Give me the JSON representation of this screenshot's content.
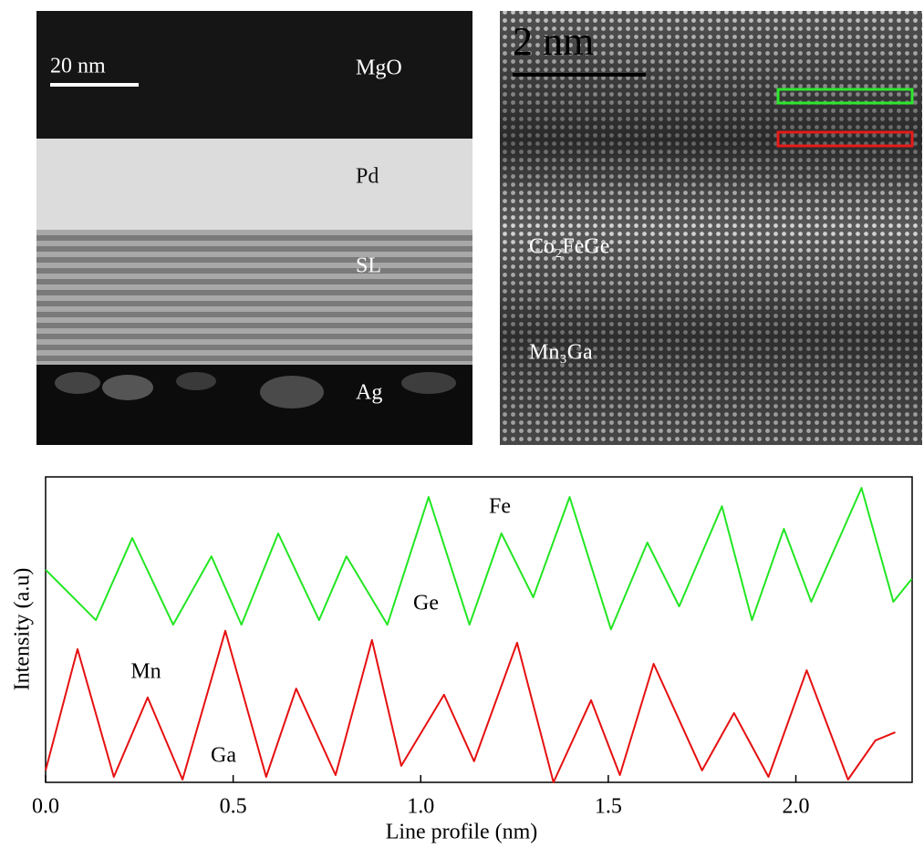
{
  "panels": [
    {
      "scale_bar": "20 nm",
      "layers": [
        "MgO",
        "Pd",
        "SL",
        "Ag"
      ]
    },
    {
      "scale_bar": "2 nm",
      "labels": [
        "Co₂FeGe",
        "Mn₃Ga"
      ]
    }
  ],
  "chart_data": {
    "type": "line",
    "xlabel": "Line profile (nm)",
    "ylabel": "Intensity (a.u)",
    "xlim": [
      0,
      2.31
    ],
    "ylim": [
      0,
      100
    ],
    "xticks": [
      {
        "value": 0,
        "label": "0.0"
      },
      0.5,
      {
        "value": 1,
        "label": "1.0"
      },
      1.5,
      {
        "value": 2,
        "label": "2.0"
      }
    ],
    "annotations": [
      "Fe",
      "Ge",
      "Mn",
      "Ga"
    ],
    "series": [
      {
        "color": "#22e622",
        "x": [
          0.0,
          0.134,
          0.231,
          0.34,
          0.442,
          0.522,
          0.62,
          0.729,
          0.802,
          0.911,
          1.021,
          1.13,
          1.215,
          1.3,
          1.397,
          1.507,
          1.604,
          1.689,
          1.803,
          1.883,
          1.968,
          2.041,
          2.175,
          2.26,
          2.309
        ],
        "values": [
          69.6,
          53.1,
          80.0,
          51.6,
          74.0,
          51.6,
          81.5,
          53.1,
          74.0,
          51.6,
          93.4,
          51.6,
          81.5,
          60.6,
          93.4,
          50.1,
          78.5,
          57.6,
          90.4,
          53.1,
          83.0,
          59.1,
          96.4,
          59.1,
          66.6
        ]
      },
      {
        "color": "#e61010",
        "x": [
          0.0,
          0.085,
          0.182,
          0.272,
          0.365,
          0.479,
          0.588,
          0.668,
          0.773,
          0.87,
          0.948,
          1.062,
          1.142,
          1.257,
          1.354,
          1.454,
          1.531,
          1.621,
          1.75,
          1.835,
          1.927,
          2.029,
          2.139,
          2.212,
          2.265
        ],
        "values": [
          3.9,
          43.6,
          1.8,
          27.8,
          0.9,
          49.6,
          1.8,
          30.7,
          2.4,
          46.6,
          5.4,
          28.7,
          6.9,
          45.7,
          0,
          26.9,
          2.4,
          38.8,
          3.9,
          22.7,
          1.8,
          36.7,
          0.9,
          13.7,
          16.4
        ]
      }
    ]
  }
}
